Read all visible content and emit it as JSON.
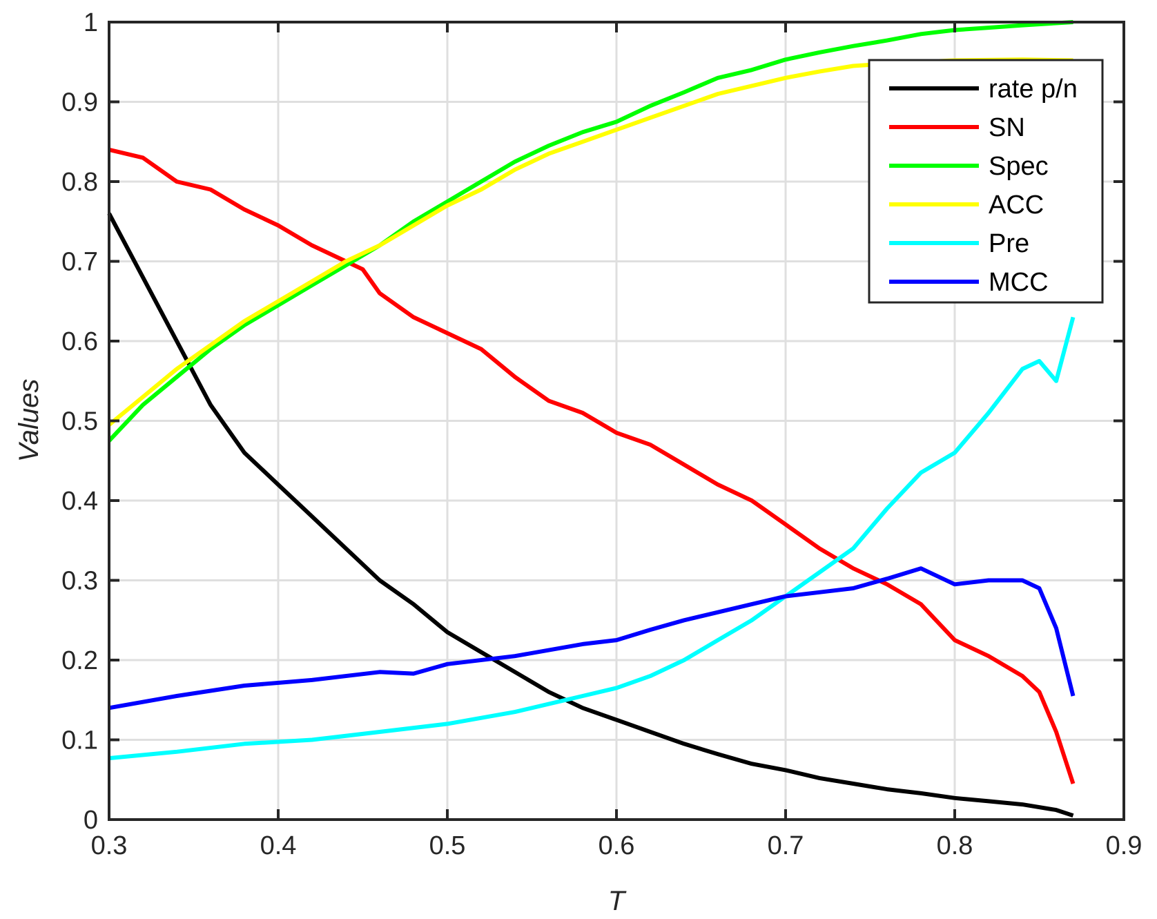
{
  "chart_data": {
    "type": "line",
    "title": "",
    "xlabel": "T",
    "ylabel": "Values",
    "xlim": [
      0.3,
      0.9
    ],
    "ylim": [
      0,
      1
    ],
    "xticks": [
      "0.3",
      "0.4",
      "0.5",
      "0.6",
      "0.7",
      "0.8",
      "0.9"
    ],
    "yticks": [
      "0",
      "0.1",
      "0.2",
      "0.3",
      "0.4",
      "0.5",
      "0.6",
      "0.7",
      "0.8",
      "0.9",
      "1"
    ],
    "grid": true,
    "legend_position": "top-right",
    "series": [
      {
        "name": "rate p/n",
        "color": "#000000",
        "x": [
          0.3,
          0.32,
          0.34,
          0.36,
          0.38,
          0.4,
          0.42,
          0.44,
          0.46,
          0.48,
          0.5,
          0.52,
          0.54,
          0.56,
          0.58,
          0.6,
          0.62,
          0.64,
          0.66,
          0.68,
          0.7,
          0.72,
          0.74,
          0.76,
          0.78,
          0.8,
          0.82,
          0.84,
          0.86,
          0.87
        ],
        "y": [
          0.76,
          0.68,
          0.6,
          0.52,
          0.46,
          0.42,
          0.38,
          0.34,
          0.3,
          0.27,
          0.235,
          0.21,
          0.185,
          0.16,
          0.14,
          0.125,
          0.11,
          0.095,
          0.082,
          0.07,
          0.062,
          0.052,
          0.045,
          0.038,
          0.033,
          0.027,
          0.023,
          0.019,
          0.012,
          0.005
        ]
      },
      {
        "name": "SN",
        "color": "#ff0000",
        "x": [
          0.3,
          0.32,
          0.34,
          0.36,
          0.38,
          0.4,
          0.42,
          0.44,
          0.45,
          0.46,
          0.48,
          0.5,
          0.52,
          0.54,
          0.56,
          0.58,
          0.6,
          0.62,
          0.64,
          0.66,
          0.68,
          0.7,
          0.72,
          0.74,
          0.76,
          0.78,
          0.8,
          0.82,
          0.84,
          0.85,
          0.86,
          0.87
        ],
        "y": [
          0.84,
          0.83,
          0.8,
          0.79,
          0.765,
          0.745,
          0.72,
          0.7,
          0.69,
          0.66,
          0.63,
          0.61,
          0.59,
          0.555,
          0.525,
          0.51,
          0.485,
          0.47,
          0.445,
          0.42,
          0.4,
          0.37,
          0.34,
          0.315,
          0.295,
          0.27,
          0.225,
          0.205,
          0.18,
          0.16,
          0.11,
          0.045
        ]
      },
      {
        "name": "Spec",
        "color": "#00ff00",
        "x": [
          0.3,
          0.32,
          0.34,
          0.36,
          0.38,
          0.4,
          0.42,
          0.44,
          0.46,
          0.48,
          0.5,
          0.52,
          0.54,
          0.56,
          0.58,
          0.6,
          0.62,
          0.64,
          0.66,
          0.68,
          0.7,
          0.72,
          0.74,
          0.76,
          0.78,
          0.8,
          0.82,
          0.84,
          0.87
        ],
        "y": [
          0.475,
          0.52,
          0.555,
          0.59,
          0.62,
          0.645,
          0.67,
          0.695,
          0.72,
          0.75,
          0.775,
          0.8,
          0.825,
          0.845,
          0.862,
          0.875,
          0.895,
          0.912,
          0.93,
          0.94,
          0.953,
          0.962,
          0.97,
          0.977,
          0.985,
          0.99,
          0.993,
          0.996,
          1.0
        ]
      },
      {
        "name": "ACC",
        "color": "#ffff00",
        "x": [
          0.3,
          0.32,
          0.34,
          0.36,
          0.38,
          0.4,
          0.42,
          0.44,
          0.46,
          0.48,
          0.5,
          0.52,
          0.54,
          0.56,
          0.58,
          0.6,
          0.62,
          0.64,
          0.66,
          0.68,
          0.7,
          0.72,
          0.74,
          0.76,
          0.78,
          0.8,
          0.84,
          0.87
        ],
        "y": [
          0.495,
          0.53,
          0.565,
          0.595,
          0.625,
          0.65,
          0.675,
          0.7,
          0.72,
          0.745,
          0.77,
          0.79,
          0.815,
          0.835,
          0.85,
          0.865,
          0.88,
          0.895,
          0.91,
          0.92,
          0.93,
          0.938,
          0.945,
          0.948,
          0.95,
          0.952,
          0.953,
          0.952
        ]
      },
      {
        "name": "Pre",
        "color": "#00ffff",
        "x": [
          0.3,
          0.34,
          0.38,
          0.42,
          0.46,
          0.5,
          0.54,
          0.58,
          0.6,
          0.62,
          0.64,
          0.66,
          0.68,
          0.7,
          0.72,
          0.74,
          0.76,
          0.78,
          0.8,
          0.82,
          0.84,
          0.85,
          0.86,
          0.87
        ],
        "y": [
          0.077,
          0.085,
          0.095,
          0.1,
          0.11,
          0.12,
          0.135,
          0.155,
          0.165,
          0.18,
          0.2,
          0.225,
          0.25,
          0.28,
          0.31,
          0.34,
          0.39,
          0.435,
          0.46,
          0.51,
          0.565,
          0.575,
          0.55,
          0.63
        ]
      },
      {
        "name": "MCC",
        "color": "#0000ff",
        "x": [
          0.3,
          0.34,
          0.38,
          0.42,
          0.46,
          0.48,
          0.5,
          0.54,
          0.58,
          0.6,
          0.62,
          0.64,
          0.66,
          0.68,
          0.7,
          0.72,
          0.74,
          0.76,
          0.78,
          0.8,
          0.82,
          0.84,
          0.85,
          0.86,
          0.87
        ],
        "y": [
          0.14,
          0.155,
          0.168,
          0.175,
          0.185,
          0.183,
          0.195,
          0.205,
          0.22,
          0.225,
          0.238,
          0.25,
          0.26,
          0.27,
          0.28,
          0.285,
          0.29,
          0.302,
          0.315,
          0.295,
          0.3,
          0.3,
          0.29,
          0.24,
          0.155
        ]
      }
    ]
  }
}
